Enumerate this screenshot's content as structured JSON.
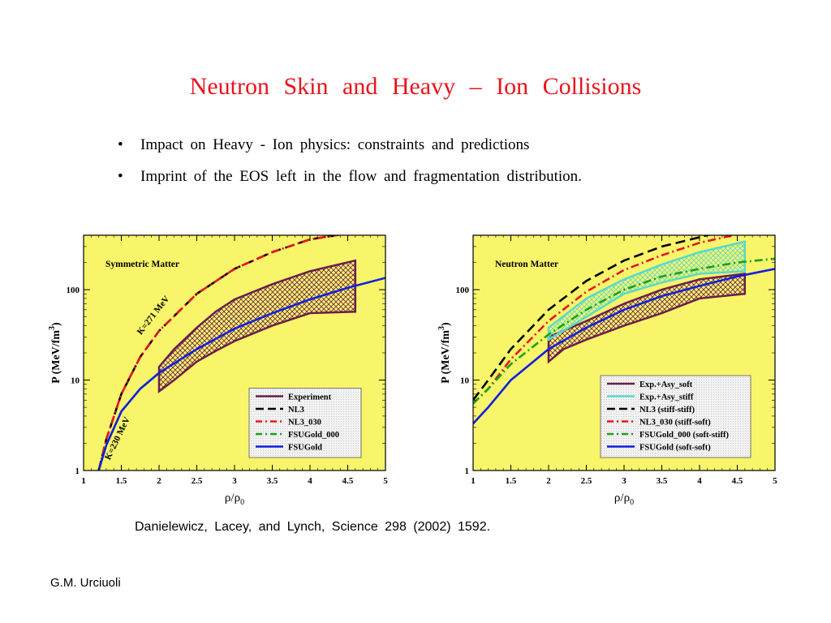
{
  "slide": {
    "title": "Neutron   Skin   and   Heavy – Ion   Collisions",
    "bullets": [
      "Impact  on  Heavy - Ion   physics:   constraints  and  predictions",
      "Imprint  of  the  EOS  left  in  the  flow  and fragmentation  distribution."
    ],
    "bullet_glyph": "•",
    "citation": "Danielewicz,  Lacey,  and  Lynch,   Science  298  (2002)  1592.",
    "author": "G.M. Urciuoli"
  },
  "chart_data": [
    {
      "type": "line",
      "panel_label": "Symmetric Matter",
      "xlabel": "ρ/ρ",
      "xlabel_sub": "0",
      "ylabel": "P (MeV/fm",
      "ylabel_sup": "3",
      "ylabel_end": ")",
      "xlim": [
        1,
        5
      ],
      "ylim": [
        1,
        400
      ],
      "y_scale": "log",
      "x_ticks": [
        1,
        1.5,
        2,
        2.5,
        3,
        3.5,
        4,
        4.5,
        5
      ],
      "x_tick_labels": [
        "1",
        "1.5",
        "2",
        "2.5",
        "3",
        "3.5",
        "4",
        "4.5",
        "5"
      ],
      "y_ticks": [
        1,
        10,
        100
      ],
      "y_tick_labels": [
        "1",
        "10",
        "100"
      ],
      "background": "#f8f56a",
      "legend_position": "bottom-right",
      "region": {
        "name": "Experiment",
        "color": "#6b1e4c",
        "upper": {
          "x": [
            2,
            2.2,
            2.5,
            2.75,
            3,
            3.5,
            4,
            4.6
          ],
          "y": [
            14,
            22,
            38,
            57,
            78,
            115,
            160,
            210
          ]
        },
        "lower": {
          "x": [
            2,
            2.2,
            2.5,
            2.75,
            3,
            3.5,
            4,
            4.6
          ],
          "y": [
            7.5,
            10,
            16,
            21,
            27,
            40,
            55,
            57
          ]
        }
      },
      "series": [
        {
          "name": "Experiment",
          "color": "#6b1e4c",
          "dash": "solid",
          "legend_only": true
        },
        {
          "name": "NL3",
          "color": "#000000",
          "dash": "dash",
          "x": [
            1.2,
            1.3,
            1.5,
            1.75,
            2,
            2.5,
            3,
            3.5,
            4,
            4.5
          ],
          "y": [
            1,
            2.2,
            7,
            18,
            35,
            90,
            170,
            260,
            360,
            420
          ]
        },
        {
          "name": "NL3_030",
          "color": "#e8141c",
          "dash": "dashdot",
          "x": [
            1.2,
            1.3,
            1.5,
            1.75,
            2,
            2.5,
            3,
            3.5,
            4,
            4.5
          ],
          "y": [
            1,
            2.2,
            7,
            18,
            35,
            90,
            170,
            260,
            360,
            420
          ]
        },
        {
          "name": "FSUGold_000",
          "color": "#1aa01a",
          "dash": "dashdot",
          "x": [
            1.2,
            1.3,
            1.5,
            1.75,
            2
          ],
          "y": [
            1,
            1.9,
            4.5,
            8,
            12
          ]
        },
        {
          "name": "FSUGold",
          "color": "#1020e0",
          "dash": "solid",
          "x": [
            1.2,
            1.3,
            1.5,
            1.75,
            2,
            2.5,
            3,
            3.5,
            4,
            4.5,
            5
          ],
          "y": [
            1,
            1.9,
            4.5,
            8,
            12,
            22,
            37,
            55,
            78,
            105,
            135
          ]
        }
      ],
      "annotations": [
        {
          "text": "K=271 MeV",
          "x": 1.95,
          "y": 50,
          "angle": -52
        },
        {
          "text": "K=230 MeV",
          "x": 1.48,
          "y": 2.2,
          "angle": -64
        }
      ]
    },
    {
      "type": "line",
      "panel_label": "Neutron Matter",
      "xlabel": "ρ/ρ",
      "xlabel_sub": "0",
      "ylabel": "P (MeV/fm",
      "ylabel_sup": "3",
      "ylabel_end": ")",
      "xlim": [
        1,
        5
      ],
      "ylim": [
        1,
        400
      ],
      "y_scale": "log",
      "x_ticks": [
        1,
        1.5,
        2,
        2.5,
        3,
        3.5,
        4,
        4.5,
        5
      ],
      "x_tick_labels": [
        "1",
        "1.5",
        "2",
        "2.5",
        "3",
        "3.5",
        "4",
        "4.5",
        "5"
      ],
      "y_ticks": [
        1,
        10,
        100
      ],
      "y_tick_labels": [
        "1",
        "10",
        "100"
      ],
      "background": "#f8f56a",
      "legend_position": "bottom-right",
      "regions": [
        {
          "name": "Exp.+Asy_soft",
          "color": "#6b1e4c",
          "upper": {
            "x": [
              2,
              2.5,
              3,
              3.5,
              4,
              4.6
            ],
            "y": [
              30,
              45,
              70,
              100,
              130,
              150
            ]
          },
          "lower": {
            "x": [
              2,
              2.2,
              2.5,
              3,
              3.5,
              4,
              4.6
            ],
            "y": [
              16,
              22,
              28,
              40,
              55,
              80,
              90
            ]
          }
        },
        {
          "name": "Exp.+Asy_stiff",
          "color": "#5ad8cc",
          "upper": {
            "x": [
              2,
              2.5,
              3,
              3.5,
              4,
              4.6
            ],
            "y": [
              38,
              80,
              130,
              190,
              260,
              340
            ]
          },
          "lower": {
            "x": [
              2,
              2.5,
              3,
              3.5,
              4,
              4.6
            ],
            "y": [
              28,
              50,
              90,
              120,
              150,
              160
            ]
          }
        }
      ],
      "series": [
        {
          "name": "Exp.+Asy_soft",
          "color": "#6b1e4c",
          "dash": "solid",
          "legend_only": true
        },
        {
          "name": "Exp.+Asy_stiff",
          "color": "#5ad8cc",
          "dash": "solid",
          "legend_only": true
        },
        {
          "name": "NL3 (stiff-stiff)",
          "color": "#000000",
          "dash": "dash",
          "x": [
            1,
            1.2,
            1.5,
            2,
            2.5,
            3,
            3.5,
            4,
            4.2
          ],
          "y": [
            6,
            10,
            22,
            60,
            125,
            210,
            300,
            380,
            420
          ]
        },
        {
          "name": "NL3_030 (stiff-soft)",
          "color": "#e8141c",
          "dash": "dashdot",
          "x": [
            1,
            1.2,
            1.5,
            2,
            2.5,
            3,
            3.5,
            4,
            4.5
          ],
          "y": [
            5.5,
            8,
            17,
            45,
            95,
            165,
            240,
            330,
            410
          ]
        },
        {
          "name": "FSUGold_000 (soft-stiff)",
          "color": "#1aa01a",
          "dash": "dashdot",
          "x": [
            1,
            1.2,
            1.5,
            2,
            2.5,
            3,
            3.5,
            4,
            4.5,
            5
          ],
          "y": [
            5.5,
            8,
            15,
            32,
            60,
            100,
            140,
            170,
            200,
            220
          ]
        },
        {
          "name": "FSUGold (soft-soft)",
          "color": "#1020e0",
          "dash": "solid",
          "x": [
            1,
            1.2,
            1.5,
            2,
            2.5,
            3,
            3.5,
            4,
            4.5,
            5
          ],
          "y": [
            3.3,
            5,
            10,
            22,
            38,
            60,
            85,
            110,
            140,
            170
          ]
        }
      ]
    }
  ]
}
